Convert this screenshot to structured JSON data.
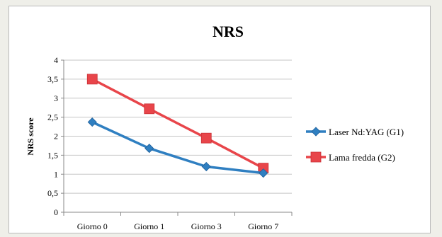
{
  "chart_data": {
    "type": "line",
    "title": "NRS",
    "xlabel": "",
    "ylabel": "NRS score",
    "categories": [
      "Giorno 0",
      "Giorno 1",
      "Giorno 3",
      "Giorno 7"
    ],
    "ylim": [
      0,
      4
    ],
    "yticks": [
      "0",
      "0,5",
      "1",
      "1,5",
      "2",
      "2,5",
      "3",
      "3,5",
      "4"
    ],
    "grid": true,
    "legend_position": "right",
    "series": [
      {
        "name": "Laser Nd:YAG (G1)",
        "values": [
          2.37,
          1.68,
          1.2,
          1.03
        ],
        "color": "#2f7fc1",
        "marker": "diamond"
      },
      {
        "name": "Lama fredda (G2)",
        "values": [
          3.5,
          2.72,
          1.95,
          1.16
        ],
        "color": "#e8454a",
        "marker": "square"
      }
    ]
  }
}
